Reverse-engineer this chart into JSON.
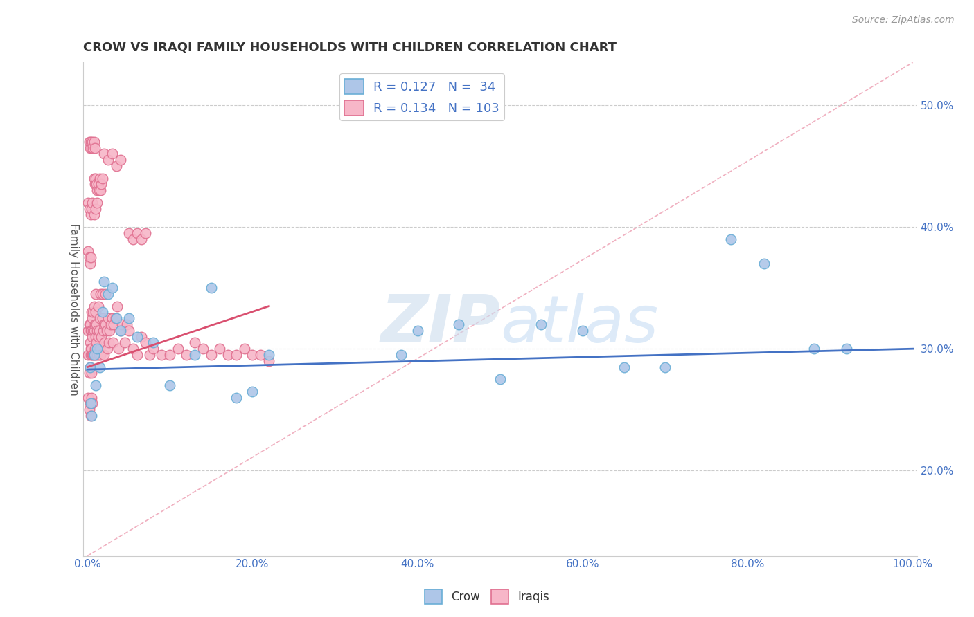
{
  "title": "CROW VS IRAQI FAMILY HOUSEHOLDS WITH CHILDREN CORRELATION CHART",
  "source": "Source: ZipAtlas.com",
  "ylabel": "Family Households with Children",
  "xlim": [
    -0.005,
    1.005
  ],
  "ylim": [
    0.13,
    0.535
  ],
  "xticks": [
    0.0,
    0.2,
    0.4,
    0.6,
    0.8,
    1.0
  ],
  "xtick_labels": [
    "0.0%",
    "20.0%",
    "40.0%",
    "60.0%",
    "80.0%",
    "100.0%"
  ],
  "yticks": [
    0.2,
    0.3,
    0.4,
    0.5
  ],
  "ytick_labels": [
    "20.0%",
    "30.0%",
    "40.0%",
    "50.0%"
  ],
  "crow_color": "#aec6e8",
  "crow_edge_color": "#6aaed6",
  "iraqis_color": "#f7b6c8",
  "iraqis_edge_color": "#e07090",
  "crow_R": 0.127,
  "crow_N": 34,
  "iraqis_R": 0.134,
  "iraqis_N": 103,
  "crow_line_color": "#4472c4",
  "iraqis_line_color": "#d94f6f",
  "diagonal_color": "#f0b0c0",
  "watermark_left": "ZIP",
  "watermark_right": "atlas",
  "watermark_color": "#c8dff5",
  "legend_crow_label": "Crow",
  "legend_iraqis_label": "Iraqis",
  "crow_x": [
    0.003,
    0.004,
    0.005,
    0.008,
    0.01,
    0.012,
    0.015,
    0.018,
    0.02,
    0.025,
    0.03,
    0.035,
    0.04,
    0.05,
    0.06,
    0.08,
    0.1,
    0.13,
    0.15,
    0.18,
    0.2,
    0.22,
    0.38,
    0.4,
    0.45,
    0.5,
    0.55,
    0.6,
    0.65,
    0.7,
    0.78,
    0.82,
    0.88,
    0.92
  ],
  "crow_y": [
    0.285,
    0.255,
    0.245,
    0.295,
    0.27,
    0.3,
    0.285,
    0.33,
    0.355,
    0.345,
    0.35,
    0.325,
    0.315,
    0.325,
    0.31,
    0.305,
    0.27,
    0.295,
    0.35,
    0.26,
    0.265,
    0.295,
    0.295,
    0.315,
    0.32,
    0.275,
    0.32,
    0.315,
    0.285,
    0.285,
    0.39,
    0.37,
    0.3,
    0.3
  ],
  "iraqis_x": [
    0.001,
    0.001,
    0.002,
    0.002,
    0.003,
    0.003,
    0.003,
    0.004,
    0.004,
    0.004,
    0.005,
    0.005,
    0.005,
    0.005,
    0.006,
    0.006,
    0.006,
    0.007,
    0.007,
    0.007,
    0.008,
    0.008,
    0.008,
    0.009,
    0.009,
    0.01,
    0.01,
    0.01,
    0.01,
    0.011,
    0.011,
    0.012,
    0.012,
    0.013,
    0.013,
    0.014,
    0.014,
    0.015,
    0.015,
    0.016,
    0.016,
    0.017,
    0.018,
    0.018,
    0.019,
    0.02,
    0.02,
    0.021,
    0.022,
    0.022,
    0.023,
    0.024,
    0.025,
    0.026,
    0.027,
    0.028,
    0.03,
    0.031,
    0.032,
    0.034,
    0.036,
    0.038,
    0.04,
    0.042,
    0.045,
    0.048,
    0.05,
    0.055,
    0.06,
    0.065,
    0.07,
    0.075,
    0.08,
    0.09,
    0.1,
    0.11,
    0.12,
    0.13,
    0.14,
    0.15,
    0.16,
    0.17,
    0.18,
    0.19,
    0.2,
    0.21,
    0.22,
    0.02,
    0.025,
    0.03,
    0.035,
    0.04,
    0.008,
    0.009,
    0.01,
    0.011,
    0.012,
    0.013,
    0.014,
    0.015,
    0.016,
    0.017,
    0.018
  ],
  "iraqis_y": [
    0.295,
    0.315,
    0.28,
    0.32,
    0.285,
    0.305,
    0.32,
    0.295,
    0.315,
    0.3,
    0.28,
    0.3,
    0.315,
    0.33,
    0.295,
    0.31,
    0.325,
    0.295,
    0.315,
    0.33,
    0.295,
    0.315,
    0.335,
    0.3,
    0.32,
    0.295,
    0.31,
    0.33,
    0.345,
    0.305,
    0.32,
    0.295,
    0.315,
    0.31,
    0.335,
    0.295,
    0.315,
    0.3,
    0.325,
    0.345,
    0.295,
    0.31,
    0.325,
    0.345,
    0.315,
    0.295,
    0.32,
    0.305,
    0.32,
    0.345,
    0.315,
    0.3,
    0.325,
    0.305,
    0.315,
    0.32,
    0.325,
    0.305,
    0.32,
    0.325,
    0.335,
    0.3,
    0.315,
    0.32,
    0.305,
    0.32,
    0.315,
    0.3,
    0.295,
    0.31,
    0.305,
    0.295,
    0.3,
    0.295,
    0.295,
    0.3,
    0.295,
    0.305,
    0.3,
    0.295,
    0.3,
    0.295,
    0.295,
    0.3,
    0.295,
    0.295,
    0.29,
    0.46,
    0.455,
    0.46,
    0.45,
    0.455,
    0.44,
    0.435,
    0.44,
    0.435,
    0.43,
    0.435,
    0.43,
    0.44,
    0.43,
    0.435,
    0.44
  ],
  "iraqis_extra_x": [
    0.001,
    0.002,
    0.003,
    0.004,
    0.005,
    0.006,
    0.001,
    0.002,
    0.003,
    0.004,
    0.001,
    0.002,
    0.004,
    0.005,
    0.006,
    0.008,
    0.01,
    0.012,
    0.002,
    0.003,
    0.004,
    0.005,
    0.006,
    0.007,
    0.008,
    0.009,
    0.05,
    0.055,
    0.06,
    0.065,
    0.07
  ],
  "iraqis_extra_y": [
    0.26,
    0.25,
    0.255,
    0.245,
    0.26,
    0.255,
    0.38,
    0.375,
    0.37,
    0.375,
    0.42,
    0.415,
    0.41,
    0.415,
    0.42,
    0.41,
    0.415,
    0.42,
    0.47,
    0.465,
    0.47,
    0.465,
    0.47,
    0.465,
    0.47,
    0.465,
    0.395,
    0.39,
    0.395,
    0.39,
    0.395
  ]
}
